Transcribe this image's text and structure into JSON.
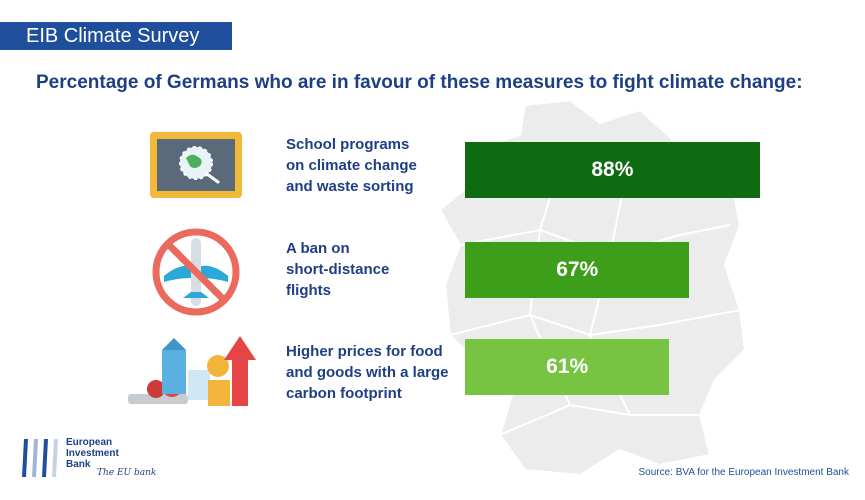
{
  "header": {
    "survey_title": "EIB Climate Survey"
  },
  "title": "Percentage of Germans who are in favour of these measures to fight climate change:",
  "measures": [
    {
      "label_lines": [
        "School programs",
        "on climate change",
        "and waste sorting"
      ],
      "icon": "school-board-globe-icon"
    },
    {
      "label_lines": [
        "A ban on",
        "short-distance",
        "flights"
      ],
      "icon": "no-flights-icon"
    },
    {
      "label_lines": [
        "Higher prices for food",
        "and goods with a large",
        "carbon footprint"
      ],
      "icon": "food-price-increase-icon"
    }
  ],
  "chart_data": {
    "type": "bar",
    "orientation": "horizontal",
    "categories": [
      "School programs on climate change and waste sorting",
      "A ban on short-distance flights",
      "Higher prices for food and goods with a large carbon footprint"
    ],
    "values": [
      88,
      67,
      61
    ],
    "data_labels": [
      "88%",
      "67%",
      "61%"
    ],
    "colors": [
      "#0e6b12",
      "#3d9e1a",
      "#77c443"
    ],
    "xlim": [
      0,
      100
    ]
  },
  "source": "Source: BVA for the European Investment Bank",
  "logo": {
    "lines": [
      "European",
      "Investment",
      "Bank"
    ],
    "slogan": "The EU bank"
  },
  "colors": {
    "brand_blue": "#1f4e9c",
    "title_blue": "#1f3f85",
    "map_gray": "#ececec"
  }
}
